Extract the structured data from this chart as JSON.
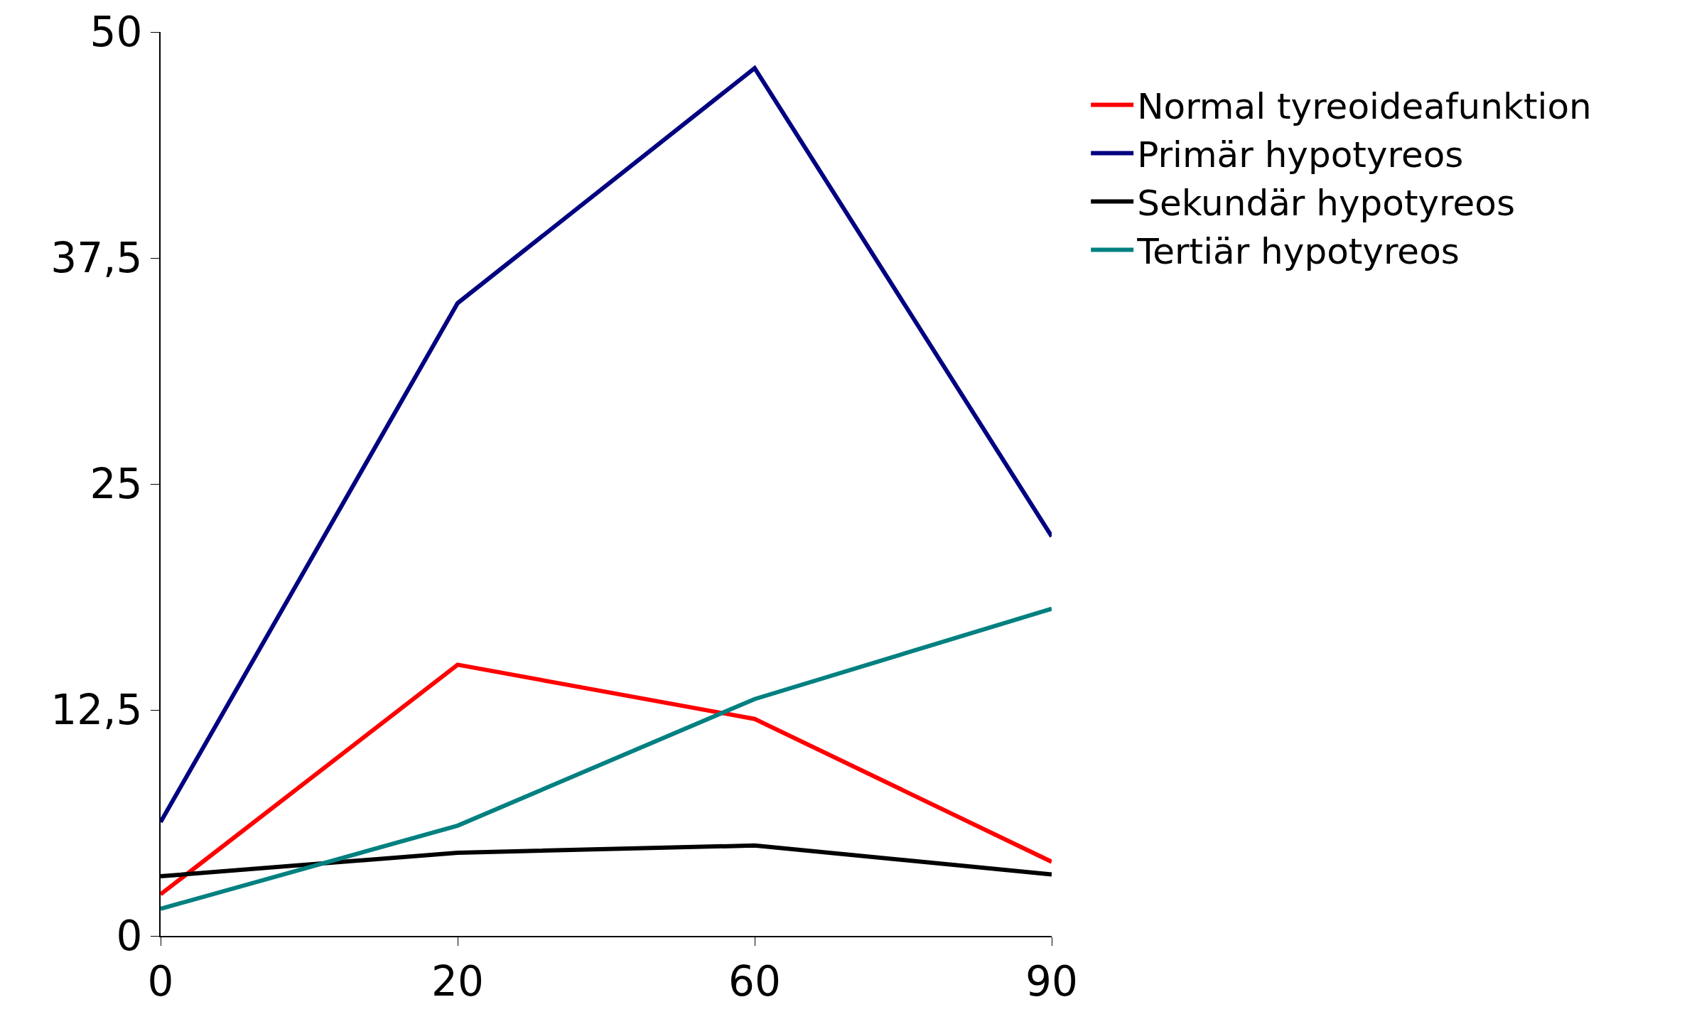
{
  "chart_data": {
    "type": "line",
    "categories": [
      "0",
      "20",
      "60",
      "90"
    ],
    "series": [
      {
        "name": "Normal tyreoideafunktion",
        "color": "#ff0000",
        "values": [
          2.3,
          15.0,
          12.0,
          4.1
        ]
      },
      {
        "name": "Primär hypotyreos",
        "color": "#000080",
        "values": [
          6.3,
          35.0,
          48.0,
          22.1
        ]
      },
      {
        "name": "Sekundär hypotyreos",
        "color": "#000000",
        "values": [
          3.3,
          4.6,
          5.0,
          3.4
        ]
      },
      {
        "name": "Tertiär hypotyreos",
        "color": "#008080",
        "values": [
          1.5,
          6.1,
          13.1,
          18.1
        ]
      }
    ],
    "ylim": [
      0,
      50
    ],
    "yticks": [
      0,
      {
        "value": 12.5,
        "label": "12,5"
      },
      25,
      {
        "value": 37.5,
        "label": "37,5"
      },
      50
    ],
    "legend": "top right",
    "marker": "none",
    "line_style": "solid"
  }
}
